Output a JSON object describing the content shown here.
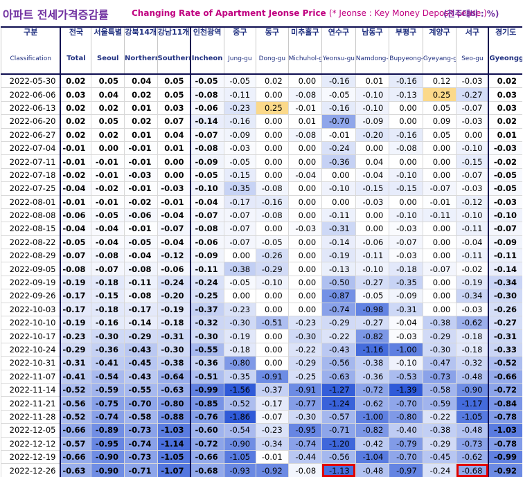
{
  "title": {
    "korean": "아파트 전세가격증감률",
    "english": "Changing Rate of Apartment Jeonse Price",
    "note_en": "(* Jeonse : Key Money Deposit Lease )",
    "note_kr": "(전주대비 : %)"
  },
  "header": {
    "first_col": {
      "kr": "구분",
      "en": "Classification"
    },
    "columns": [
      {
        "kr": "전국",
        "en": "Total"
      },
      {
        "kr": "서울특별",
        "en": "Seoul"
      },
      {
        "kr": "강북14개",
        "en": "Northern seoul"
      },
      {
        "kr": "강남11개",
        "en": "Southern Seoul"
      },
      {
        "kr": "인천광역",
        "en": "Incheon"
      },
      {
        "kr": "중구",
        "en": "Jung-gu"
      },
      {
        "kr": "동구",
        "en": "Dong-gu"
      },
      {
        "kr": "미추홀구",
        "en": "Michuhol-gu"
      },
      {
        "kr": "연수구",
        "en": "Yeonsu-gu"
      },
      {
        "kr": "남동구",
        "en": "Namdong-gu"
      },
      {
        "kr": "부평구",
        "en": "Bupyeong-gu"
      },
      {
        "kr": "계양구",
        "en": "Gyeyang-gu"
      },
      {
        "kr": "서구",
        "en": "Seo-gu"
      },
      {
        "kr": "경기도",
        "en": "Gyeonggi-do"
      }
    ]
  },
  "colors": {
    "header_text": "#203080",
    "title_kr": "#7030a0",
    "title_en": "#c00080",
    "highlight_positive": "#fbd98a",
    "heat_low": "#ffffff",
    "heat_high": "#2f5ad8",
    "flag_border": "#e00000"
  },
  "chart_data": {
    "type": "table",
    "x": [
      "2022-05-30",
      "2022-06-06",
      "2022-06-13",
      "2022-06-20",
      "2022-06-27",
      "2022-07-04",
      "2022-07-11",
      "2022-07-18",
      "2022-07-25",
      "2022-08-01",
      "2022-08-08",
      "2022-08-15",
      "2022-08-22",
      "2022-08-29",
      "2022-09-05",
      "2022-09-19",
      "2022-09-26",
      "2022-10-03",
      "2022-10-10",
      "2022-10-17",
      "2022-10-24",
      "2022-10-31",
      "2022-11-07",
      "2022-11-14",
      "2022-11-21",
      "2022-11-28",
      "2022-12-05",
      "2022-12-12",
      "2022-12-19",
      "2022-12-26"
    ],
    "rows": [
      [
        "0.02",
        "0.05",
        "0.04",
        "0.05",
        "-0.05",
        "-0.05",
        "0.02",
        "0.00",
        "-0.16",
        "0.01",
        "-0.16",
        "0.12",
        "-0.03",
        "0.02"
      ],
      [
        "0.03",
        "0.04",
        "0.02",
        "0.05",
        "-0.08",
        "-0.11",
        "0.00",
        "-0.08",
        "-0.05",
        "-0.10",
        "-0.13",
        "0.25",
        "-0.27",
        "0.03"
      ],
      [
        "0.02",
        "0.02",
        "0.01",
        "0.03",
        "-0.06",
        "-0.23",
        "0.25",
        "-0.01",
        "-0.16",
        "-0.10",
        "0.00",
        "0.05",
        "-0.07",
        "0.03"
      ],
      [
        "0.02",
        "0.05",
        "0.02",
        "0.07",
        "-0.14",
        "-0.16",
        "0.00",
        "0.01",
        "-0.70",
        "-0.09",
        "0.00",
        "0.09",
        "-0.03",
        "0.02"
      ],
      [
        "0.02",
        "0.02",
        "0.01",
        "0.04",
        "-0.07",
        "-0.09",
        "0.00",
        "-0.08",
        "-0.01",
        "-0.20",
        "-0.16",
        "0.05",
        "0.00",
        "0.01"
      ],
      [
        "-0.01",
        "0.00",
        "-0.01",
        "0.01",
        "-0.08",
        "-0.03",
        "0.00",
        "0.00",
        "-0.24",
        "0.00",
        "-0.08",
        "0.00",
        "-0.10",
        "-0.03"
      ],
      [
        "-0.01",
        "-0.01",
        "-0.01",
        "0.00",
        "-0.09",
        "-0.05",
        "0.00",
        "0.00",
        "-0.36",
        "0.04",
        "0.00",
        "0.00",
        "-0.15",
        "-0.02"
      ],
      [
        "-0.02",
        "-0.01",
        "-0.03",
        "0.00",
        "-0.05",
        "-0.15",
        "0.00",
        "-0.04",
        "0.00",
        "-0.04",
        "-0.10",
        "0.00",
        "-0.07",
        "-0.05"
      ],
      [
        "-0.04",
        "-0.02",
        "-0.01",
        "-0.03",
        "-0.10",
        "-0.35",
        "-0.08",
        "0.00",
        "-0.10",
        "-0.15",
        "-0.15",
        "-0.07",
        "-0.03",
        "-0.05"
      ],
      [
        "-0.01",
        "-0.01",
        "-0.02",
        "-0.01",
        "-0.04",
        "-0.17",
        "-0.16",
        "0.00",
        "0.00",
        "-0.03",
        "0.00",
        "-0.01",
        "-0.12",
        "-0.03"
      ],
      [
        "-0.06",
        "-0.05",
        "-0.06",
        "-0.04",
        "-0.07",
        "-0.07",
        "-0.08",
        "0.00",
        "-0.11",
        "0.00",
        "-0.10",
        "-0.11",
        "-0.10",
        "-0.10"
      ],
      [
        "-0.04",
        "-0.04",
        "-0.01",
        "-0.07",
        "-0.08",
        "-0.07",
        "0.00",
        "-0.03",
        "-0.31",
        "0.00",
        "-0.03",
        "0.00",
        "-0.11",
        "-0.07"
      ],
      [
        "-0.05",
        "-0.04",
        "-0.05",
        "-0.04",
        "-0.06",
        "-0.07",
        "-0.05",
        "0.00",
        "-0.14",
        "-0.06",
        "-0.07",
        "0.00",
        "-0.04",
        "-0.09"
      ],
      [
        "-0.07",
        "-0.08",
        "-0.04",
        "-0.12",
        "-0.09",
        "0.00",
        "-0.26",
        "0.00",
        "-0.19",
        "-0.11",
        "-0.03",
        "0.00",
        "-0.11",
        "-0.11"
      ],
      [
        "-0.08",
        "-0.07",
        "-0.08",
        "-0.06",
        "-0.11",
        "-0.38",
        "-0.29",
        "0.00",
        "-0.13",
        "-0.10",
        "-0.18",
        "-0.07",
        "-0.02",
        "-0.14"
      ],
      [
        "-0.19",
        "-0.18",
        "-0.11",
        "-0.24",
        "-0.24",
        "-0.05",
        "-0.10",
        "0.00",
        "-0.50",
        "-0.27",
        "-0.35",
        "0.00",
        "-0.19",
        "-0.34"
      ],
      [
        "-0.17",
        "-0.15",
        "-0.08",
        "-0.20",
        "-0.25",
        "0.00",
        "0.00",
        "0.00",
        "-0.87",
        "-0.05",
        "-0.09",
        "0.00",
        "-0.34",
        "-0.30"
      ],
      [
        "-0.17",
        "-0.18",
        "-0.17",
        "-0.19",
        "-0.37",
        "-0.23",
        "0.00",
        "0.00",
        "-0.74",
        "-0.98",
        "-0.31",
        "0.00",
        "-0.03",
        "-0.26"
      ],
      [
        "-0.19",
        "-0.16",
        "-0.14",
        "-0.18",
        "-0.32",
        "-0.30",
        "-0.51",
        "-0.23",
        "-0.29",
        "-0.27",
        "-0.04",
        "-0.38",
        "-0.62",
        "-0.27"
      ],
      [
        "-0.23",
        "-0.30",
        "-0.29",
        "-0.31",
        "-0.30",
        "-0.19",
        "0.00",
        "-0.30",
        "-0.22",
        "-0.82",
        "-0.03",
        "-0.29",
        "-0.18",
        "-0.31"
      ],
      [
        "-0.29",
        "-0.36",
        "-0.43",
        "-0.30",
        "-0.55",
        "-0.18",
        "0.00",
        "-0.22",
        "-0.43",
        "-1.16",
        "-1.00",
        "-0.30",
        "-0.18",
        "-0.33"
      ],
      [
        "-0.31",
        "-0.41",
        "-0.45",
        "-0.38",
        "-0.36",
        "-0.80",
        "0.00",
        "-0.29",
        "-0.56",
        "-0.38",
        "-0.10",
        "-0.47",
        "-0.32",
        "-0.52"
      ],
      [
        "-0.41",
        "-0.54",
        "-0.43",
        "-0.64",
        "-0.51",
        "-0.35",
        "-0.91",
        "-0.25",
        "-0.63",
        "-0.36",
        "-0.53",
        "-0.73",
        "-0.48",
        "-0.66"
      ],
      [
        "-0.52",
        "-0.59",
        "-0.55",
        "-0.63",
        "-0.99",
        "-1.56",
        "-0.37",
        "-0.91",
        "-1.27",
        "-0.72",
        "-1.39",
        "-0.58",
        "-0.90",
        "-0.72"
      ],
      [
        "-0.56",
        "-0.75",
        "-0.70",
        "-0.80",
        "-0.85",
        "-0.52",
        "-0.17",
        "-0.77",
        "-1.24",
        "-0.62",
        "-0.70",
        "-0.59",
        "-1.17",
        "-0.84"
      ],
      [
        "-0.52",
        "-0.74",
        "-0.58",
        "-0.88",
        "-0.76",
        "-1.86",
        "-0.07",
        "-0.30",
        "-0.57",
        "-1.00",
        "-0.80",
        "-0.22",
        "-1.05",
        "-0.78"
      ],
      [
        "-0.66",
        "-0.89",
        "-0.73",
        "-1.03",
        "-0.60",
        "-0.54",
        "-0.23",
        "-0.95",
        "-0.71",
        "-0.82",
        "-0.40",
        "-0.38",
        "-0.48",
        "-1.03"
      ],
      [
        "-0.57",
        "-0.95",
        "-0.74",
        "-1.14",
        "-0.72",
        "-0.90",
        "-0.34",
        "-0.74",
        "-1.20",
        "-0.42",
        "-0.79",
        "-0.29",
        "-0.73",
        "-0.78"
      ],
      [
        "-0.66",
        "-0.90",
        "-0.73",
        "-1.05",
        "-0.66",
        "-1.05",
        "-0.01",
        "-0.44",
        "-0.56",
        "-1.04",
        "-0.70",
        "-0.45",
        "-0.62",
        "-0.99"
      ],
      [
        "-0.63",
        "-0.90",
        "-0.71",
        "-1.07",
        "-0.68",
        "-0.93",
        "-0.92",
        "-0.08",
        "-1.13",
        "-0.48",
        "-0.97",
        "-0.24",
        "-0.68",
        "-0.92"
      ]
    ],
    "bold_columns": [
      0,
      1,
      2,
      3,
      4,
      13
    ],
    "highlighted_positive": [
      [
        1,
        11
      ],
      [
        2,
        6
      ]
    ],
    "flagged_cells": [
      [
        29,
        8
      ],
      [
        29,
        12
      ]
    ]
  }
}
